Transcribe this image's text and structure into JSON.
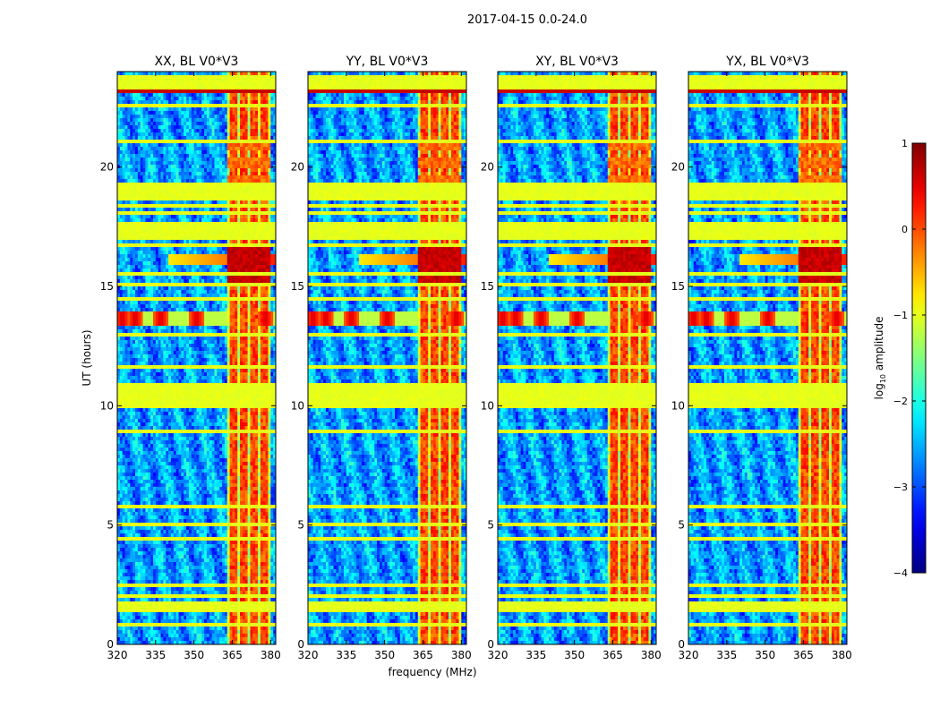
{
  "figure": {
    "suptitle": "2017-04-15 0.0-24.0",
    "xlabel": "frequency (MHz)",
    "ylabel": "UT (hours)"
  },
  "chart_data": {
    "type": "heatmap",
    "title": "2017-04-15 0.0-24.0",
    "xlabel": "frequency (MHz)",
    "ylabel": "UT (hours)",
    "xlim": [
      320,
      382
    ],
    "ylim": [
      0,
      24
    ],
    "xticks": [
      320,
      335,
      350,
      365,
      380
    ],
    "yticks": [
      0,
      5,
      10,
      15,
      20
    ],
    "panels": [
      {
        "title": "XX, BL V0*V3",
        "pol": "XX"
      },
      {
        "title": "YY, BL V0*V3",
        "pol": "YY"
      },
      {
        "title": "XY, BL V0*V3",
        "pol": "XY"
      },
      {
        "title": "YX, BL V0*V3",
        "pol": "YX"
      }
    ],
    "colorbar": {
      "label": "log10 amplitude",
      "label_main": "log",
      "label_sub": "10",
      "label_tail": " amplitude",
      "vmin": -4,
      "vmax": 1,
      "ticks": [
        1,
        0,
        -1,
        -2,
        -3,
        -4
      ],
      "tick_labels": [
        "1",
        "0",
        "−1",
        "−2",
        "−3",
        "−4"
      ],
      "colormap": "jet"
    },
    "features": {
      "rfi_band_mhz": [
        363,
        380
      ],
      "rfi_band_value": -1.0,
      "rfi_bright_columns_mhz": [
        365.5,
        369.5,
        373.5,
        377.5
      ],
      "burst_hours": [
        13.4,
        14.0
      ],
      "burst_peak_mhz": [
        322,
        327,
        337,
        351,
        378
      ],
      "bright_block_hours": [
        15.0,
        16.8
      ],
      "bright_block_value": 0.8,
      "background_value": -2.6,
      "flagged_rows_hours": [
        [
          0.8,
          0.9
        ],
        [
          1.3,
          1.8
        ],
        [
          1.95,
          2.05
        ],
        [
          2.4,
          2.5
        ],
        [
          2.65,
          2.75
        ],
        [
          2.95,
          3.05
        ],
        [
          4.3,
          4.45
        ],
        [
          5.0,
          5.1
        ],
        [
          5.5,
          5.6
        ],
        [
          5.75,
          5.9
        ],
        [
          8.5,
          8.6
        ],
        [
          8.9,
          9.0
        ],
        [
          9.95,
          10.05
        ],
        [
          10.1,
          10.9
        ],
        [
          11.6,
          11.7
        ],
        [
          12.1,
          12.2
        ],
        [
          12.9,
          13.0
        ],
        [
          14.4,
          14.5
        ],
        [
          15.0,
          15.1
        ],
        [
          15.5,
          15.6
        ],
        [
          16.0,
          16.1
        ],
        [
          16.7,
          16.8
        ],
        [
          17.0,
          17.7
        ],
        [
          18.0,
          18.1
        ],
        [
          18.3,
          18.4
        ],
        [
          18.6,
          19.3
        ],
        [
          20.05,
          20.15
        ],
        [
          21.0,
          21.1
        ],
        [
          21.7,
          21.8
        ],
        [
          22.55,
          22.65
        ],
        [
          23.3,
          23.8
        ]
      ],
      "red_lines_hours": [
        9.95,
        11.6,
        15.45,
        21.15,
        21.3,
        23.15
      ]
    }
  }
}
